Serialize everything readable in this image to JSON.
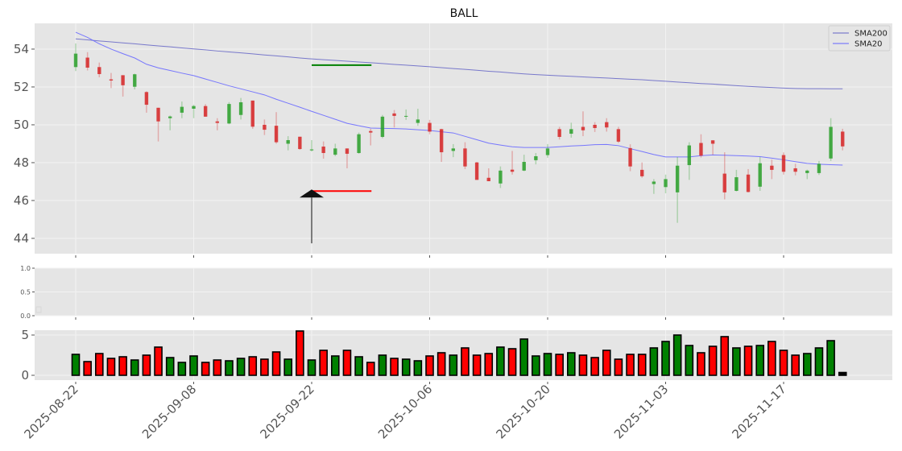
{
  "chart_data": {
    "type": "candlestick",
    "title": "BALL",
    "dates": [
      "2025-08-22",
      "2025-08-25",
      "2025-08-26",
      "2025-08-27",
      "2025-08-28",
      "2025-08-29",
      "2025-09-02",
      "2025-09-03",
      "2025-09-04",
      "2025-09-05",
      "2025-09-08",
      "2025-09-09",
      "2025-09-10",
      "2025-09-11",
      "2025-09-12",
      "2025-09-15",
      "2025-09-16",
      "2025-09-17",
      "2025-09-18",
      "2025-09-19",
      "2025-09-22",
      "2025-09-23",
      "2025-09-24",
      "2025-09-25",
      "2025-09-26",
      "2025-09-29",
      "2025-09-30",
      "2025-10-01",
      "2025-10-02",
      "2025-10-03",
      "2025-10-06",
      "2025-10-07",
      "2025-10-08",
      "2025-10-09",
      "2025-10-10",
      "2025-10-13",
      "2025-10-14",
      "2025-10-15",
      "2025-10-16",
      "2025-10-17",
      "2025-10-20",
      "2025-10-21",
      "2025-10-22",
      "2025-10-23",
      "2025-10-24",
      "2025-10-27",
      "2025-10-28",
      "2025-10-29",
      "2025-10-30",
      "2025-10-31",
      "2025-11-03",
      "2025-11-04",
      "2025-11-05",
      "2025-11-06",
      "2025-11-07",
      "2025-11-10",
      "2025-11-11",
      "2025-11-12",
      "2025-11-13",
      "2025-11-14",
      "2025-11-17",
      "2025-11-18",
      "2025-11-19",
      "2025-11-20",
      "2025-11-21",
      "2025-11-24"
    ],
    "ohlc": [
      [
        53.05,
        54.3,
        52.84,
        53.76
      ],
      [
        53.55,
        53.84,
        52.87,
        53.02
      ],
      [
        53.05,
        53.29,
        52.51,
        52.68
      ],
      [
        52.4,
        52.74,
        51.94,
        52.34
      ],
      [
        52.62,
        52.62,
        51.49,
        52.09
      ],
      [
        52.01,
        52.7,
        51.87,
        52.67
      ],
      [
        51.73,
        51.77,
        50.64,
        51.06
      ],
      [
        50.9,
        50.9,
        49.12,
        50.18
      ],
      [
        50.35,
        50.49,
        49.71,
        50.44
      ],
      [
        50.64,
        51.23,
        50.35,
        50.95
      ],
      [
        50.85,
        51.06,
        50.35,
        50.99
      ],
      [
        50.99,
        51.09,
        50.43,
        50.43
      ],
      [
        50.18,
        50.35,
        49.71,
        50.1
      ],
      [
        50.07,
        51.2,
        50.03,
        51.1
      ],
      [
        50.52,
        51.42,
        50.28,
        51.19
      ],
      [
        51.28,
        51.28,
        49.79,
        49.9
      ],
      [
        50.0,
        50.28,
        49.46,
        49.74
      ],
      [
        49.95,
        50.67,
        49.0,
        49.08
      ],
      [
        49.0,
        49.4,
        48.65,
        49.19
      ],
      [
        49.37,
        49.37,
        48.68,
        48.72
      ],
      [
        48.65,
        49.19,
        48.59,
        48.7
      ],
      [
        48.85,
        49.12,
        48.21,
        48.51
      ],
      [
        48.42,
        49.0,
        48.34,
        48.75
      ],
      [
        48.75,
        48.75,
        47.7,
        48.47
      ],
      [
        48.51,
        49.59,
        48.47,
        49.5
      ],
      [
        49.67,
        49.79,
        48.91,
        49.59
      ],
      [
        49.36,
        50.52,
        49.29,
        50.43
      ],
      [
        50.6,
        50.78,
        49.86,
        50.47
      ],
      [
        50.43,
        50.81,
        50.26,
        50.47
      ],
      [
        50.1,
        50.85,
        49.95,
        50.28
      ],
      [
        50.1,
        50.26,
        49.5,
        49.64
      ],
      [
        49.77,
        49.79,
        48.04,
        48.55
      ],
      [
        48.62,
        48.98,
        48.29,
        48.75
      ],
      [
        48.75,
        49.08,
        47.66,
        47.8
      ],
      [
        48.01,
        48.04,
        47.09,
        47.09
      ],
      [
        47.2,
        47.7,
        47.02,
        47.02
      ],
      [
        46.9,
        47.8,
        46.66,
        47.58
      ],
      [
        47.63,
        48.62,
        47.37,
        47.52
      ],
      [
        47.58,
        48.42,
        47.55,
        48.04
      ],
      [
        48.13,
        48.51,
        47.91,
        48.34
      ],
      [
        48.4,
        48.98,
        48.26,
        48.75
      ],
      [
        49.77,
        49.89,
        49.22,
        49.36
      ],
      [
        49.53,
        50.11,
        49.32,
        49.77
      ],
      [
        49.89,
        50.71,
        49.4,
        49.71
      ],
      [
        50.0,
        50.14,
        49.62,
        49.83
      ],
      [
        50.14,
        50.35,
        49.64,
        49.86
      ],
      [
        49.77,
        49.89,
        49.04,
        49.11
      ],
      [
        48.77,
        48.97,
        47.55,
        47.8
      ],
      [
        47.62,
        48.01,
        47.2,
        47.28
      ],
      [
        46.87,
        47.13,
        46.35,
        47.0
      ],
      [
        46.71,
        47.37,
        46.38,
        47.13
      ],
      [
        46.43,
        48.3,
        44.82,
        47.84
      ],
      [
        47.87,
        49.08,
        47.09,
        48.91
      ],
      [
        49.04,
        49.5,
        48.27,
        48.37
      ],
      [
        49.18,
        49.18,
        48.42,
        49.0
      ],
      [
        47.42,
        48.55,
        46.06,
        46.43
      ],
      [
        46.51,
        47.62,
        46.48,
        47.23
      ],
      [
        47.37,
        47.66,
        46.43,
        46.45
      ],
      [
        46.73,
        48.3,
        46.51,
        47.97
      ],
      [
        47.84,
        48.16,
        47.13,
        47.62
      ],
      [
        48.4,
        48.54,
        47.37,
        47.52
      ],
      [
        47.7,
        47.94,
        47.33,
        47.52
      ],
      [
        47.45,
        47.63,
        47.13,
        47.58
      ],
      [
        47.45,
        48.09,
        47.35,
        47.94
      ],
      [
        48.22,
        50.35,
        48.09,
        49.89
      ],
      [
        49.64,
        49.79,
        48.65,
        48.86
      ]
    ],
    "ohlc_fields": [
      "open",
      "high",
      "low",
      "close"
    ],
    "up_color": "#2ca02c",
    "down_color": "#d62728",
    "series": [
      {
        "name": "SMA200",
        "color": "#6b6bc8",
        "values": [
          54.54,
          54.49,
          54.43,
          54.38,
          54.33,
          54.28,
          54.22,
          54.17,
          54.12,
          54.06,
          54.01,
          53.96,
          53.9,
          53.85,
          53.8,
          53.75,
          53.69,
          53.64,
          53.59,
          53.53,
          53.48,
          53.44,
          53.4,
          53.36,
          53.32,
          53.28,
          53.24,
          53.19,
          53.15,
          53.11,
          53.07,
          53.02,
          52.97,
          52.93,
          52.88,
          52.83,
          52.79,
          52.74,
          52.69,
          52.65,
          52.62,
          52.59,
          52.56,
          52.53,
          52.5,
          52.47,
          52.44,
          52.41,
          52.38,
          52.34,
          52.3,
          52.26,
          52.22,
          52.18,
          52.15,
          52.11,
          52.07,
          52.03,
          52.0,
          51.97,
          51.94,
          51.92,
          51.91,
          51.91,
          51.9,
          51.9
        ]
      },
      {
        "name": "SMA20",
        "color": "#6a6aff",
        "values": [
          54.89,
          54.62,
          54.28,
          54.0,
          53.76,
          53.53,
          53.2,
          53.01,
          52.87,
          52.73,
          52.6,
          52.42,
          52.24,
          52.06,
          51.9,
          51.74,
          51.58,
          51.35,
          51.14,
          50.93,
          50.71,
          50.5,
          50.29,
          50.08,
          49.95,
          49.83,
          49.81,
          49.8,
          49.78,
          49.74,
          49.7,
          49.63,
          49.57,
          49.39,
          49.21,
          49.03,
          48.93,
          48.84,
          48.8,
          48.8,
          48.8,
          48.84,
          48.88,
          48.91,
          48.95,
          48.96,
          48.9,
          48.74,
          48.59,
          48.43,
          48.3,
          48.3,
          48.3,
          48.37,
          48.41,
          48.39,
          48.37,
          48.35,
          48.32,
          48.24,
          48.15,
          48.05,
          47.96,
          47.92,
          47.89,
          47.87
        ]
      }
    ],
    "annotations": {
      "green_level": {
        "value": 53.15,
        "from": "2025-09-22",
        "to": "2025-09-29",
        "color": "#008000"
      },
      "red_level": {
        "value": 46.5,
        "from": "2025-09-22",
        "to": "2025-09-29",
        "color": "#ff0000"
      },
      "buy_arrow": {
        "date": "2025-09-22",
        "from": 43.74,
        "to": 46.5,
        "color": "#111111"
      }
    },
    "price_ylim": [
      43.19,
      55.36
    ],
    "price_yticks": [
      44,
      46,
      48,
      50,
      52,
      54
    ],
    "indicator_ylim": [
      0,
      1
    ],
    "indicator_yticks": [
      "0.0",
      "0.5",
      "1.0"
    ],
    "volume": [
      2.6,
      1.7,
      2.7,
      2.1,
      2.3,
      1.9,
      2.5,
      3.5,
      2.2,
      1.6,
      2.4,
      1.6,
      1.9,
      1.8,
      2.1,
      2.3,
      2.0,
      2.9,
      2.0,
      5.5,
      1.9,
      3.1,
      2.4,
      3.1,
      2.3,
      1.6,
      2.5,
      2.1,
      2.0,
      1.8,
      2.4,
      2.8,
      2.5,
      3.4,
      2.5,
      2.7,
      3.5,
      3.3,
      4.5,
      2.4,
      2.7,
      2.6,
      2.8,
      2.5,
      2.2,
      3.1,
      2.0,
      2.6,
      2.6,
      3.4,
      4.2,
      5.0,
      3.7,
      2.8,
      3.6,
      4.8,
      3.4,
      3.6,
      3.7,
      4.2,
      3.1,
      2.5,
      2.7,
      3.4,
      4.3,
      0.35
    ],
    "volume_up_color": "#008000",
    "volume_down_color": "#ff0000",
    "volume_last_color": "#000000",
    "volume_ylim": [
      -0.6,
      5.6
    ],
    "volume_yticks": [
      "0",
      "5"
    ],
    "xtick_labels": [
      "2025-08-22",
      "2025-09-08",
      "2025-09-22",
      "2025-10-06",
      "2025-10-20",
      "2025-11-03",
      "2025-11-17"
    ],
    "legend": {
      "placement": "top-right",
      "entries": [
        "SMA200",
        "SMA20"
      ]
    },
    "grid": true,
    "background": "#e5e5e5"
  }
}
